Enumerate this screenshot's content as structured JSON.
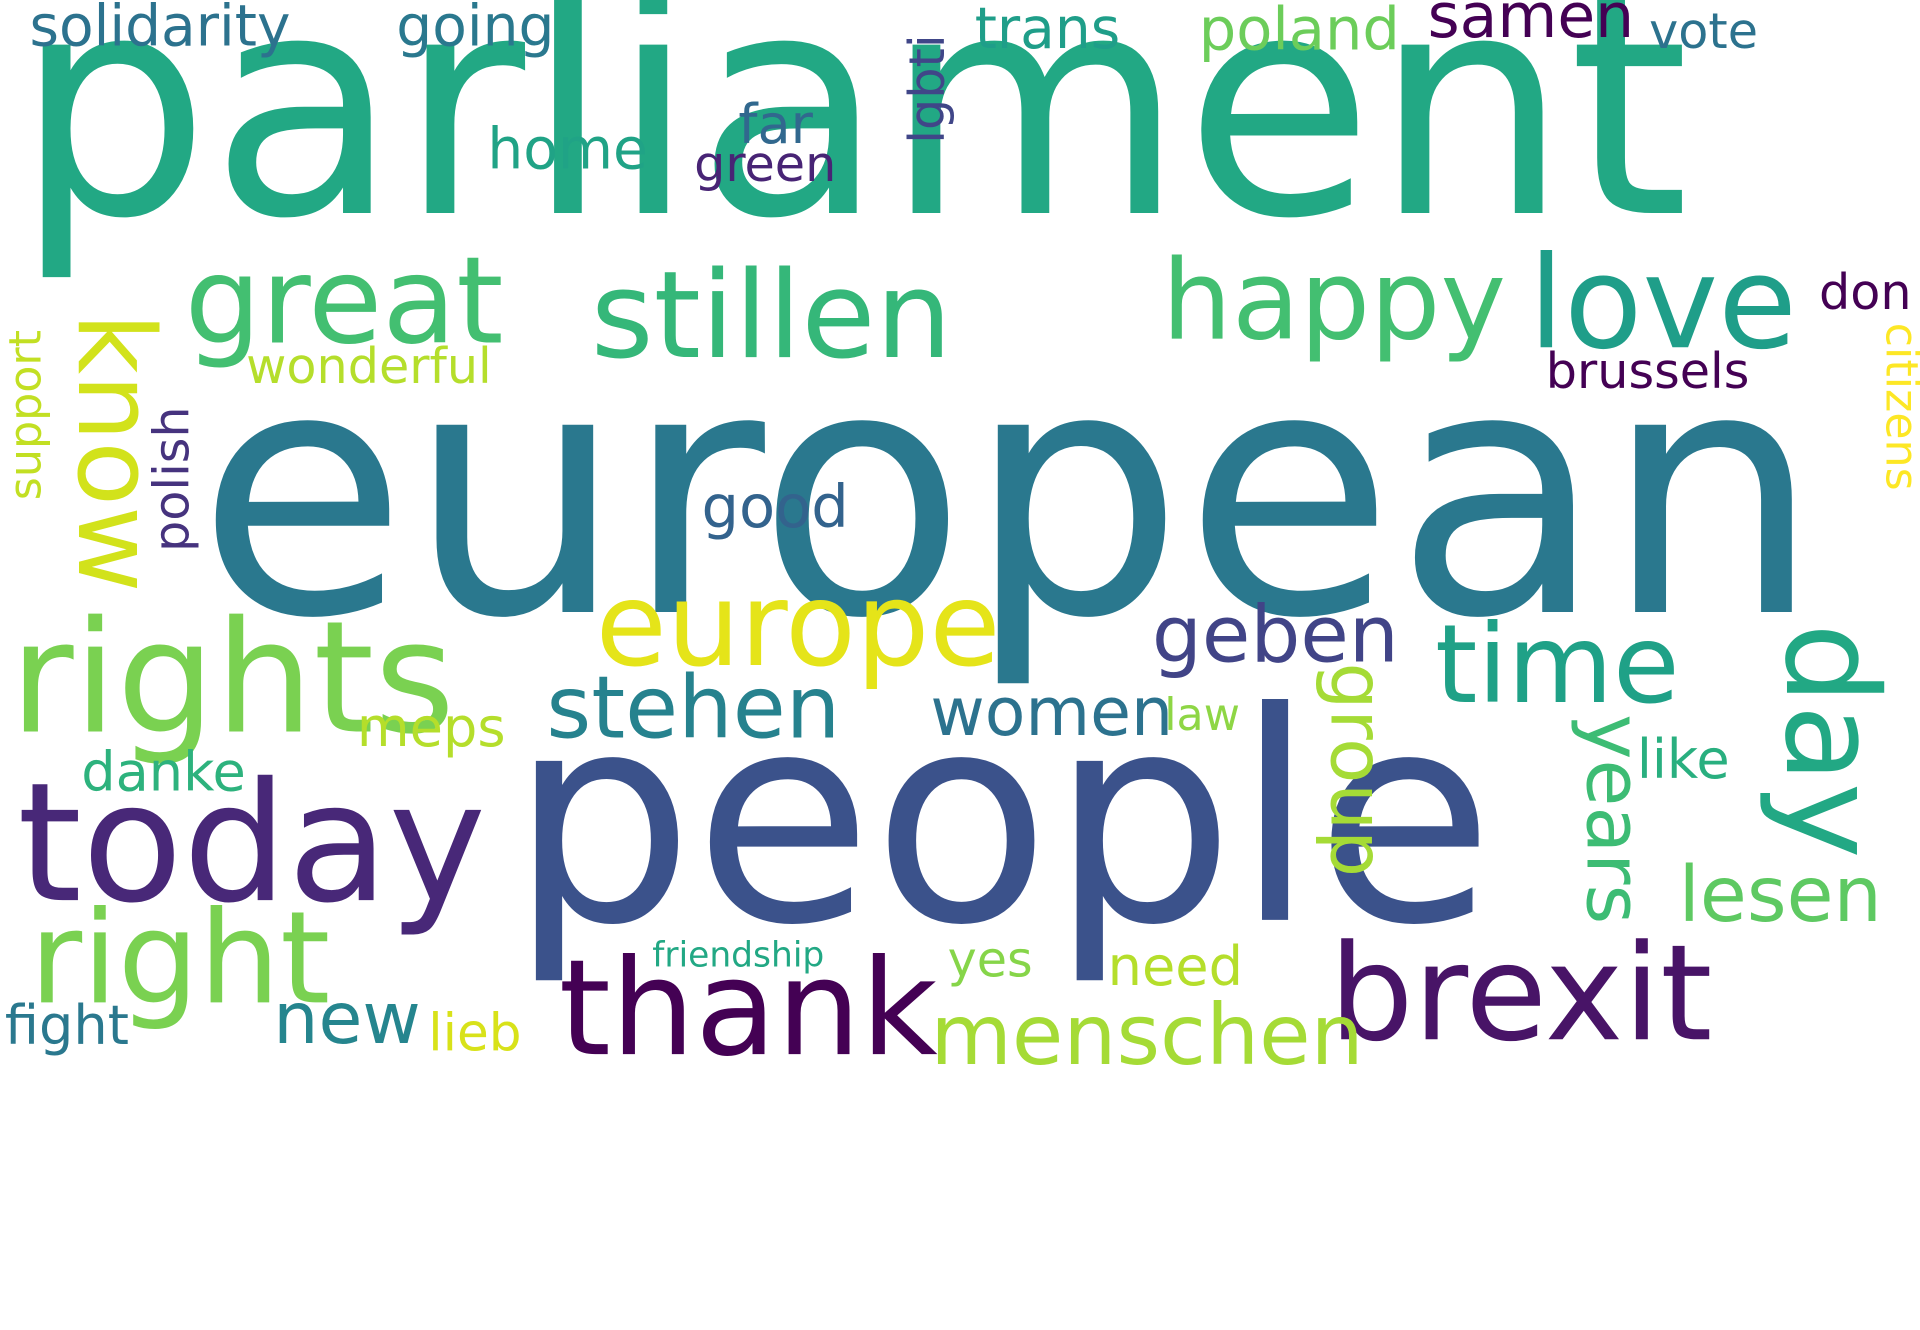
{
  "words": [
    {
      "text": "parliament",
      "color": "#22a884"
    },
    {
      "text": "european",
      "color": "#2a788e"
    },
    {
      "text": "people",
      "color": "#3b528b"
    },
    {
      "text": "today",
      "color": "#482878"
    },
    {
      "text": "rights",
      "color": "#7ad151"
    },
    {
      "text": "europe",
      "color": "#e5e419"
    },
    {
      "text": "thank",
      "color": "#440154"
    },
    {
      "text": "brexit",
      "color": "#481467"
    },
    {
      "text": "right",
      "color": "#7ad151"
    },
    {
      "text": "stillen",
      "color": "#35b779"
    },
    {
      "text": "great",
      "color": "#43bf71"
    },
    {
      "text": "happy",
      "color": "#43bf71"
    },
    {
      "text": "love",
      "color": "#1f9e89"
    },
    {
      "text": "know",
      "color": "#d2e21b"
    },
    {
      "text": "day",
      "color": "#22a884"
    },
    {
      "text": "time",
      "color": "#1fa187"
    },
    {
      "text": "stehen",
      "color": "#26828e"
    },
    {
      "text": "geben",
      "color": "#414487"
    },
    {
      "text": "menschen",
      "color": "#a5db36"
    },
    {
      "text": "years",
      "color": "#3dbc74"
    },
    {
      "text": "group",
      "color": "#a5db36"
    },
    {
      "text": "lesen",
      "color": "#5ec962"
    },
    {
      "text": "women",
      "color": "#2c728e"
    },
    {
      "text": "new",
      "color": "#25858e"
    },
    {
      "text": "samen",
      "color": "#440154"
    },
    {
      "text": "poland",
      "color": "#6ccd5a"
    },
    {
      "text": "trans",
      "color": "#1f9e89"
    },
    {
      "text": "solidarity",
      "color": "#2c728e"
    },
    {
      "text": "going",
      "color": "#2a788e"
    },
    {
      "text": "vote",
      "color": "#2c728e"
    },
    {
      "text": "home",
      "color": "#20a386"
    },
    {
      "text": "far",
      "color": "#31688e"
    },
    {
      "text": "green",
      "color": "#482475"
    },
    {
      "text": "lgbti",
      "color": "#404688"
    },
    {
      "text": "wonderful",
      "color": "#b5de2b"
    },
    {
      "text": "support",
      "color": "#c2df23"
    },
    {
      "text": "polish",
      "color": "#46337e"
    },
    {
      "text": "good",
      "color": "#33638d"
    },
    {
      "text": "don",
      "color": "#440154"
    },
    {
      "text": "brussels",
      "color": "#440154"
    },
    {
      "text": "citizens",
      "color": "#fde725"
    },
    {
      "text": "meps",
      "color": "#b5de2b"
    },
    {
      "text": "danke",
      "color": "#2db27d"
    },
    {
      "text": "law",
      "color": "#8ed645"
    },
    {
      "text": "like",
      "color": "#29af7f"
    },
    {
      "text": "friendship",
      "color": "#22a884"
    },
    {
      "text": "yes",
      "color": "#86d549"
    },
    {
      "text": "need",
      "color": "#b5de2b"
    },
    {
      "text": "fight",
      "color": "#2a788e"
    },
    {
      "text": "lieb",
      "color": "#d8e219"
    }
  ]
}
